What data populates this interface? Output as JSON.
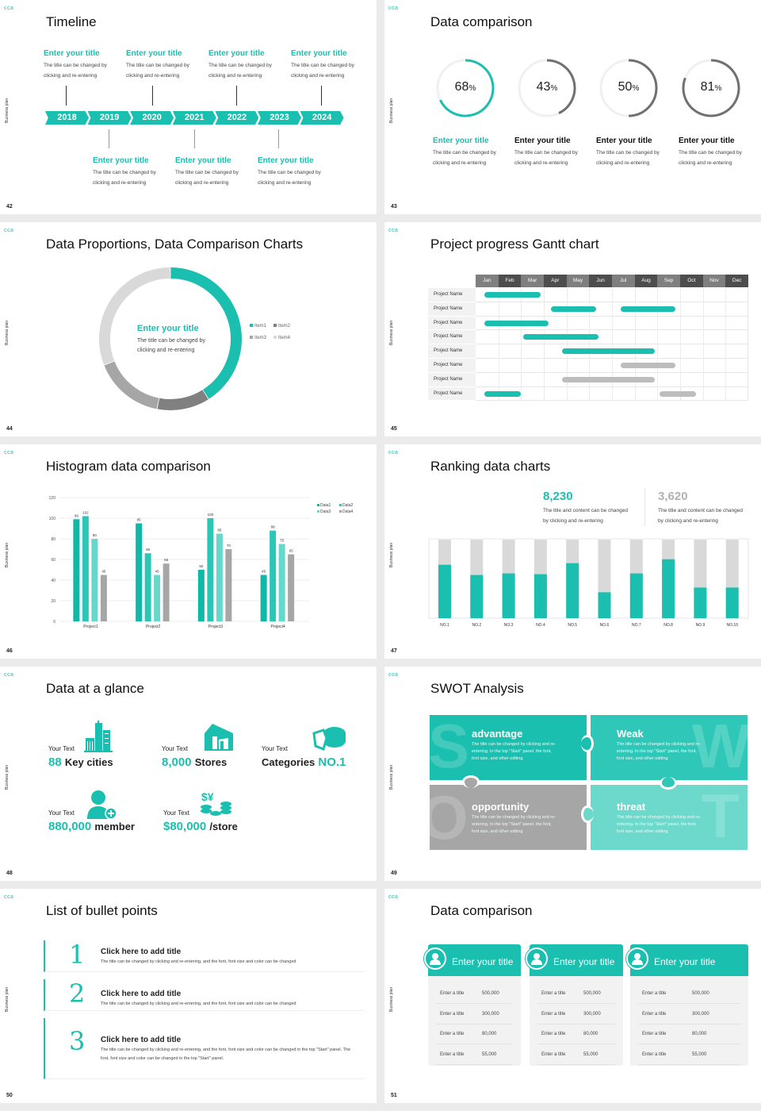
{
  "common": {
    "brand": "cca",
    "side_label": "Business plan"
  },
  "colors": {
    "teal": "#1abfaf",
    "dark_gray": "#707070",
    "gray": "#a6a6a6",
    "light_gray": "#d9d9d9"
  },
  "slides": {
    "s42": {
      "page": "42",
      "title": "Timeline",
      "years": [
        "2018",
        "2019",
        "2020",
        "2021",
        "2022",
        "2023",
        "2024"
      ],
      "top_items": [
        {
          "title": "Enter your title",
          "line1": "The title can be changed by",
          "line2": "clicking and re-entering"
        },
        {
          "title": "Enter your title",
          "line1": "The title can be changed by",
          "line2": "clicking and re-entering"
        },
        {
          "title": "Enter your title",
          "line1": "The title can be changed by",
          "line2": "clicking and re-entering"
        },
        {
          "title": "Enter your title",
          "line1": "The title can be changed by",
          "line2": "clicking and re-entering"
        }
      ],
      "bottom_items": [
        {
          "title": "Enter your title",
          "line1": "The title can be changed by",
          "line2": "clicking and re-entering"
        },
        {
          "title": "Enter your title",
          "line1": "The title can be changed by",
          "line2": "clicking and re-entering"
        },
        {
          "title": "Enter your title",
          "line1": "The title can be changed by",
          "line2": "clicking and re-entering"
        }
      ]
    },
    "s43": {
      "page": "43",
      "title": "Data comparison",
      "items": [
        {
          "value": "68",
          "unit": "%",
          "title": "Enter your title",
          "line1": "The title can be changed by",
          "line2": "clicking and re-entering",
          "highlight": true
        },
        {
          "value": "43",
          "unit": "%",
          "title": "Enter your title",
          "line1": "The title can be changed by",
          "line2": "clicking and re-entering",
          "highlight": false
        },
        {
          "value": "50",
          "unit": "%",
          "title": "Enter your title",
          "line1": "The title can be changed by",
          "line2": "clicking and re-entering",
          "highlight": false
        },
        {
          "value": "81",
          "unit": "%",
          "title": "Enter your title",
          "line1": "The title can be changed by",
          "line2": "clicking and re-entering",
          "highlight": false
        }
      ]
    },
    "s44": {
      "page": "44",
      "title": "Data Proportions, Data Comparison Charts",
      "center_title": "Enter your title",
      "center_line1": "The title can be changed by",
      "center_line2": "clicking and re-entering"
    },
    "s45": {
      "page": "45",
      "title": "Project progress Gantt chart"
    },
    "s46": {
      "page": "46",
      "title": "Histogram data comparison"
    },
    "s47": {
      "page": "47",
      "title": "Ranking data charts",
      "stats": [
        {
          "value": "8,230",
          "line1": "The title and content can be changed",
          "line2": "by clicking and re-entering"
        },
        {
          "value": "3,620",
          "line1": "The title and content can be changed",
          "line2": "by clicking and re-entering"
        }
      ]
    },
    "s48": {
      "page": "48",
      "title": "Data at a glance",
      "items": [
        {
          "label": "Your Text",
          "number": "88",
          "suffix": "Key cities",
          "icon": "city-buildings-icon"
        },
        {
          "label": "Your Text",
          "number": "8,000",
          "suffix": "Stores",
          "icon": "store-icon"
        },
        {
          "label": "Your Text",
          "prefix": "Categories",
          "number": "NO.1",
          "icon": "pie-chart-icon"
        },
        {
          "label": "Your Text",
          "number": "880,000",
          "suffix": "member",
          "icon": "add-user-icon"
        },
        {
          "label": "Your Text",
          "number": "$80,000",
          "suffix": "/store",
          "icon": "coins-icon"
        }
      ]
    },
    "s49": {
      "page": "49",
      "title": "SWOT Analysis",
      "quadrants": [
        {
          "letter": "S",
          "title": "advantage",
          "text": "The title can be changed by clicking and re-entering. In the top \"Start\" panel, the font, font size, and other editing",
          "color": "#1abfaf"
        },
        {
          "letter": "W",
          "title": "Weak",
          "text": "The title can be changed by clicking and re-entering. In the top \"Start\" panel, the font, font size, and other editing",
          "color": "#2fc8b8"
        },
        {
          "letter": "O",
          "title": "opportunity",
          "text": "The title can be changed by clicking and re-entering. In the top \"Start\" panel, the font, font size, and other editing",
          "color": "#a6a6a6"
        },
        {
          "letter": "T",
          "title": "threat",
          "text": "The title can be changed by clicking and re-entering. In the top \"Start\" panel, the font, font size, and other editing",
          "color": "#6dd9cc"
        }
      ]
    },
    "s50": {
      "page": "50",
      "title": "List of bullet points",
      "items": [
        {
          "num": "1",
          "title": "Click here to add title",
          "text": "The title can be changed by clicking and re-entering, and the font, font size and color can be changed"
        },
        {
          "num": "2",
          "title": "Click here to add title",
          "text": "The title can be changed by clicking and re-entering, and the font, font size and color can be changed"
        },
        {
          "num": "3",
          "title": "Click here to add title",
          "text": "The title can be changed by clicking and re-entering, and the font, font size and color can be changed in the top \"Start\" panel. The font, font size and color can be changed in the top \"Start\" panel."
        }
      ]
    },
    "s51": {
      "page": "51",
      "title": "Data comparison",
      "cards": [
        {
          "title": "Enter your title",
          "icon": "phone-user-icon",
          "rows": [
            {
              "label": "Enter a title",
              "value": "500,000"
            },
            {
              "label": "Enter a title",
              "value": "300,000"
            },
            {
              "label": "Enter a title",
              "value": "80,000"
            },
            {
              "label": "Enter a title",
              "value": "55,000"
            }
          ]
        },
        {
          "title": "Enter your title",
          "icon": "user-add-icon",
          "rows": [
            {
              "label": "Enter a title",
              "value": "500,000"
            },
            {
              "label": "Enter a title",
              "value": "300,000"
            },
            {
              "label": "Enter a title",
              "value": "80,000"
            },
            {
              "label": "Enter a title",
              "value": "55,000"
            }
          ]
        },
        {
          "title": "Enter your title",
          "icon": "user-group-icon",
          "rows": [
            {
              "label": "Enter a title",
              "value": "500,000"
            },
            {
              "label": "Enter a title",
              "value": "300,000"
            },
            {
              "label": "Enter a title",
              "value": "80,000"
            },
            {
              "label": "Enter a title",
              "value": "55,000"
            }
          ]
        }
      ]
    }
  },
  "chart_data": [
    {
      "id": "gauges",
      "type": "pie",
      "values": [
        68,
        43,
        50,
        81
      ],
      "colors": [
        "#1abfaf",
        "#707070",
        "#707070",
        "#707070"
      ]
    },
    {
      "id": "donut",
      "type": "pie",
      "categories": [
        "Item1",
        "Item2",
        "Item3",
        "Item4"
      ],
      "values": [
        41,
        12,
        16,
        31
      ],
      "colors": [
        "#1abfaf",
        "#808080",
        "#a6a6a6",
        "#d9d9d9"
      ],
      "legend": "right"
    },
    {
      "id": "gantt",
      "type": "bar",
      "months": [
        "Jan",
        "Feb",
        "Mar",
        "Apr",
        "May",
        "Jun",
        "Jul",
        "Aug",
        "Sep",
        "Oct",
        "Nov",
        "Dec"
      ],
      "rows": [
        {
          "name": "Project Name",
          "bars": [
            {
              "start": 0.4,
              "end": 2.85,
              "color": "#1abfaf"
            }
          ]
        },
        {
          "name": "Project Name",
          "bars": [
            {
              "start": 3.3,
              "end": 5.3,
              "color": "#1abfaf"
            },
            {
              "start": 6.4,
              "end": 8.8,
              "color": "#1abfaf"
            }
          ]
        },
        {
          "name": "Project Name",
          "bars": [
            {
              "start": 0.4,
              "end": 3.2,
              "color": "#1abfaf"
            }
          ]
        },
        {
          "name": "Project Name",
          "bars": [
            {
              "start": 2.1,
              "end": 5.4,
              "color": "#1abfaf"
            }
          ]
        },
        {
          "name": "Project Name",
          "bars": [
            {
              "start": 3.8,
              "end": 7.9,
              "color": "#1abfaf"
            }
          ]
        },
        {
          "name": "Project Name",
          "bars": [
            {
              "start": 6.4,
              "end": 8.8,
              "color": "#bdbdbd"
            }
          ]
        },
        {
          "name": "Project Name",
          "bars": [
            {
              "start": 3.8,
              "end": 7.9,
              "color": "#bdbdbd"
            }
          ]
        },
        {
          "name": "Project Name",
          "bars": [
            {
              "start": 0.4,
              "end": 2.0,
              "color": "#1abfaf"
            },
            {
              "start": 8.1,
              "end": 9.7,
              "color": "#bdbdbd"
            }
          ]
        }
      ]
    },
    {
      "id": "histogram",
      "type": "bar",
      "categories": [
        "Project1",
        "Project2",
        "Project3",
        "Project4"
      ],
      "series": [
        {
          "name": "Data1",
          "values": [
            99,
            95,
            50,
            45
          ],
          "color": "#0fb9a8"
        },
        {
          "name": "Data2",
          "values": [
            102,
            66,
            100,
            88
          ],
          "color": "#2cc6b6"
        },
        {
          "name": "Data3",
          "values": [
            80,
            45,
            85,
            75
          ],
          "color": "#66d8cb"
        },
        {
          "name": "Data4",
          "values": [
            45,
            56,
            70,
            65
          ],
          "color": "#a6a6a6"
        }
      ],
      "yticks": [
        "0",
        "20",
        "40",
        "60",
        "80",
        "100",
        "120"
      ],
      "ylim": [
        0,
        120
      ],
      "grid": true,
      "legend": "top-right"
    },
    {
      "id": "ranking",
      "type": "bar",
      "categories": [
        "NO.1",
        "NO.2",
        "NO.3",
        "NO.4",
        "NO.5",
        "NO.6",
        "NO.7",
        "NO.8",
        "NO.9",
        "NO.10"
      ],
      "values": [
        68,
        55,
        57,
        56,
        70,
        33,
        57,
        75,
        39,
        39
      ],
      "ylim": [
        0,
        100
      ]
    }
  ]
}
